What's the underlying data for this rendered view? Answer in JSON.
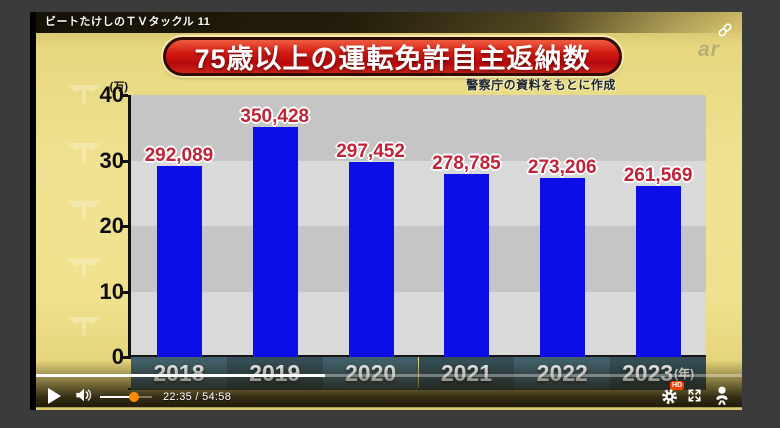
{
  "player": {
    "video_title": "ビートたけしのＴＶタックル 11",
    "time_display": "22:35 / 54:58",
    "progress_percent": 41,
    "volume_percent": 65,
    "hd_badge": "HD"
  },
  "video_overlay": {
    "watermark_text": "ar"
  },
  "chart_data": {
    "type": "bar",
    "title": "75歳以上の運転免許自主返納数",
    "source_note": "警察庁の資料をもとに作成",
    "y_unit": "(万)",
    "categories": [
      "2018",
      "2019",
      "2020",
      "2021",
      "2022",
      "2023"
    ],
    "x_suffix": "(年)",
    "values": [
      292089,
      350428,
      297452,
      278785,
      273206,
      261569
    ],
    "value_labels": [
      "292,089",
      "350,428",
      "297,452",
      "278,785",
      "273,206",
      "261,569"
    ],
    "ylim": [
      0,
      400000
    ],
    "yticks": [
      0,
      10,
      20,
      30,
      40
    ],
    "ytick_unit_value": 10000,
    "grid": "banded",
    "legend": "none",
    "colors": {
      "bar": "#0d0de8",
      "value_label": "#bf2438",
      "band_dark": "#c5c5c5",
      "band_light": "#d9d9d9",
      "xband_a": "#41606b",
      "xband_b": "#344e58"
    }
  }
}
